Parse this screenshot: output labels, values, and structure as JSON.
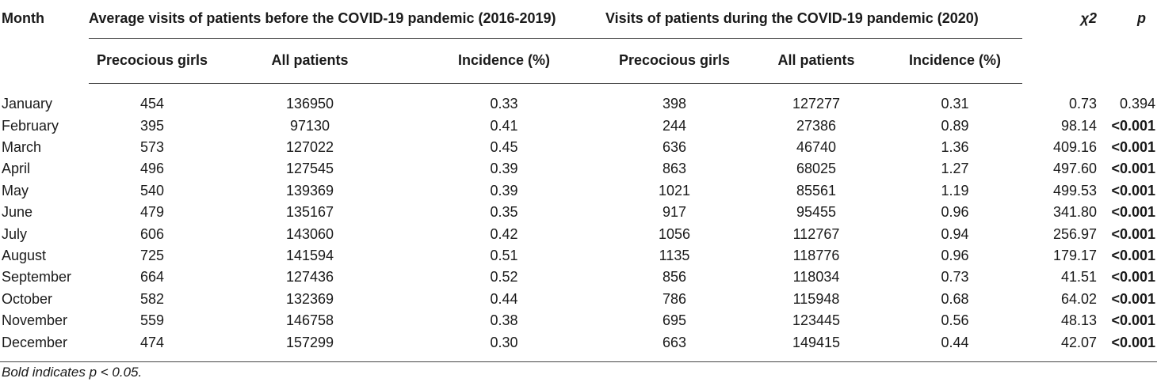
{
  "table": {
    "header_top": {
      "month": "Month",
      "group_before": "Average visits of patients before the COVID-19 pandemic (2016-2019)",
      "group_during": "Visits of patients during the COVID-19 pandemic (2020)",
      "chi": "χ2",
      "p": "p"
    },
    "header_sub": {
      "before_precocious": "Precocious girls",
      "before_all": "All patients",
      "before_incidence": "Incidence (%)",
      "during_precocious": "Precocious girls",
      "during_all": "All patients",
      "during_incidence": "Incidence (%)"
    },
    "rows": [
      {
        "month": "January",
        "b_prec": "454",
        "b_all": "136950",
        "b_inc": "0.33",
        "d_prec": "398",
        "d_all": "127277",
        "d_inc": "0.31",
        "chi": "0.73",
        "p": "0.394"
      },
      {
        "month": "February",
        "b_prec": "395",
        "b_all": "97130",
        "b_inc": "0.41",
        "d_prec": "244",
        "d_all": "27386",
        "d_inc": "0.89",
        "chi": "98.14",
        "p": "<0.001"
      },
      {
        "month": "March",
        "b_prec": "573",
        "b_all": "127022",
        "b_inc": "0.45",
        "d_prec": "636",
        "d_all": "46740",
        "d_inc": "1.36",
        "chi": "409.16",
        "p": "<0.001"
      },
      {
        "month": "April",
        "b_prec": "496",
        "b_all": "127545",
        "b_inc": "0.39",
        "d_prec": "863",
        "d_all": "68025",
        "d_inc": "1.27",
        "chi": "497.60",
        "p": "<0.001"
      },
      {
        "month": "May",
        "b_prec": "540",
        "b_all": "139369",
        "b_inc": "0.39",
        "d_prec": "1021",
        "d_all": "85561",
        "d_inc": "1.19",
        "chi": "499.53",
        "p": "<0.001"
      },
      {
        "month": "June",
        "b_prec": "479",
        "b_all": "135167",
        "b_inc": "0.35",
        "d_prec": "917",
        "d_all": "95455",
        "d_inc": "0.96",
        "chi": "341.80",
        "p": "<0.001"
      },
      {
        "month": "July",
        "b_prec": "606",
        "b_all": "143060",
        "b_inc": "0.42",
        "d_prec": "1056",
        "d_all": "112767",
        "d_inc": "0.94",
        "chi": "256.97",
        "p": "<0.001"
      },
      {
        "month": "August",
        "b_prec": "725",
        "b_all": "141594",
        "b_inc": "0.51",
        "d_prec": "1135",
        "d_all": "118776",
        "d_inc": "0.96",
        "chi": "179.17",
        "p": "<0.001"
      },
      {
        "month": "September",
        "b_prec": "664",
        "b_all": "127436",
        "b_inc": "0.52",
        "d_prec": "856",
        "d_all": "118034",
        "d_inc": "0.73",
        "chi": "41.51",
        "p": "<0.001"
      },
      {
        "month": "October",
        "b_prec": "582",
        "b_all": "132369",
        "b_inc": "0.44",
        "d_prec": "786",
        "d_all": "115948",
        "d_inc": "0.68",
        "chi": "64.02",
        "p": "<0.001"
      },
      {
        "month": "November",
        "b_prec": "559",
        "b_all": "146758",
        "b_inc": "0.38",
        "d_prec": "695",
        "d_all": "123445",
        "d_inc": "0.56",
        "chi": "48.13",
        "p": "<0.001"
      },
      {
        "month": "December",
        "b_prec": "474",
        "b_all": "157299",
        "b_inc": "0.30",
        "d_prec": "663",
        "d_all": "149415",
        "d_inc": "0.44",
        "chi": "42.07",
        "p": "<0.001"
      }
    ]
  },
  "footnote": "Bold indicates p < 0.05."
}
